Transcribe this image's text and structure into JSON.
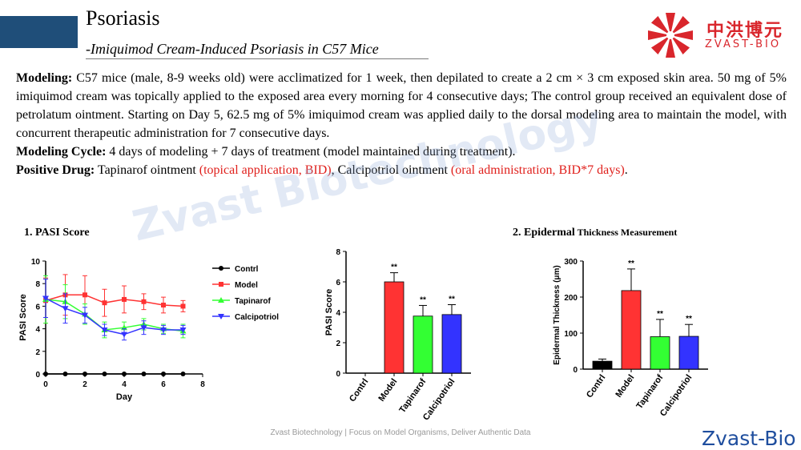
{
  "header": {
    "title": "Psoriasis",
    "subtitle": "-Imiquimod Cream-Induced Psoriasis in C57 Mice",
    "logo_cn": "中洪博元",
    "logo_en": "ZVAST-BIO"
  },
  "content": {
    "modeling_label": "Modeling:",
    "modeling_text": " C57 mice (male, 8-9 weeks old) were acclimatized for 1 week, then depilated to create a 2 cm × 3 cm exposed skin area. 50 mg of 5% imiquimod cream was topically applied to the exposed area every morning for 4 consecutive days; The control group received an equivalent dose of petrolatum ointment. Starting on Day 5, 62.5 mg of 5% imiquimod cream was applied daily to the dorsal modeling area to maintain the model, with concurrent therapeutic administration for 7 consecutive days.",
    "cycle_label": "Modeling Cycle:",
    "cycle_text": " 4 days of modeling + 7 days of treatment (model maintained during treatment).",
    "drug_label": "Positive Drug:",
    "drug_text1": " Tapinarof ointment ",
    "drug_red1": "(topical application, BID)",
    "drug_text2": ", Calcipotriol ointment ",
    "drug_red2": "(oral administration, BID*7 days)",
    "drug_end": "."
  },
  "watermark": "Zvast Biotechnology",
  "footer": {
    "tagline": "Zvast Biotechnology | Focus on Model Organisms, Deliver Authentic Data",
    "brand": "Zvast-Bio"
  },
  "colors": {
    "Contrl": "#000000",
    "Model": "#ff3333",
    "Tapinarof": "#33ff33",
    "Calcipotriol": "#3333ff",
    "accent": "#d9262c"
  },
  "chart_data": [
    {
      "type": "line",
      "title": "1. PASI Score",
      "xlabel": "Day",
      "ylabel": "PASI Score",
      "xlim": [
        0,
        8
      ],
      "ylim": [
        0,
        10
      ],
      "xticks": [
        0,
        2,
        4,
        6,
        8
      ],
      "yticks": [
        0,
        2,
        4,
        6,
        8,
        10
      ],
      "legend": "right",
      "x": [
        0,
        1,
        2,
        3,
        4,
        5,
        6,
        7
      ],
      "series": [
        {
          "name": "Contrl",
          "values": [
            0,
            0,
            0,
            0,
            0,
            0,
            0,
            0
          ],
          "err": [
            0,
            0,
            0,
            0,
            0,
            0,
            0,
            0
          ]
        },
        {
          "name": "Model",
          "values": [
            6.5,
            7.0,
            7.0,
            6.3,
            6.6,
            6.4,
            6.1,
            6.0
          ],
          "err": [
            2.0,
            1.8,
            1.7,
            1.2,
            1.2,
            0.7,
            0.7,
            0.5
          ]
        },
        {
          "name": "Tapinarof",
          "values": [
            6.6,
            6.4,
            5.3,
            3.9,
            4.1,
            4.4,
            4.0,
            3.8
          ],
          "err": [
            2.1,
            1.5,
            0.9,
            0.7,
            0.5,
            0.5,
            0.4,
            0.6
          ]
        },
        {
          "name": "Calcipotriol",
          "values": [
            6.7,
            5.8,
            5.2,
            3.9,
            3.5,
            4.1,
            3.9,
            3.9
          ],
          "err": [
            1.7,
            1.3,
            0.7,
            0.5,
            0.5,
            0.6,
            0.4,
            0.4
          ]
        }
      ]
    },
    {
      "type": "bar",
      "ylabel": "PASI Score",
      "ylim": [
        0,
        8
      ],
      "yticks": [
        0,
        2,
        4,
        6,
        8
      ],
      "categories": [
        "Contrl",
        "Model",
        "Tapinarof",
        "Calcipotriol"
      ],
      "values": [
        0,
        6.0,
        3.75,
        3.85
      ],
      "err": [
        0,
        0.6,
        0.7,
        0.65
      ],
      "labels": [
        "",
        "**",
        "**",
        "**"
      ]
    },
    {
      "type": "bar",
      "title_main": "2. Epidermal",
      "title_rest": " Thickness Measurement",
      "ylabel": "Epidermal Thickness (μm)",
      "ylim": [
        0,
        300
      ],
      "yticks": [
        0,
        100,
        200,
        300
      ],
      "categories": [
        "Contrl",
        "Model",
        "Tapinarof",
        "Calcipotriol"
      ],
      "values": [
        22,
        218,
        90,
        91
      ],
      "err": [
        6,
        60,
        48,
        33
      ],
      "labels": [
        "",
        "**",
        "**",
        "**"
      ]
    }
  ]
}
